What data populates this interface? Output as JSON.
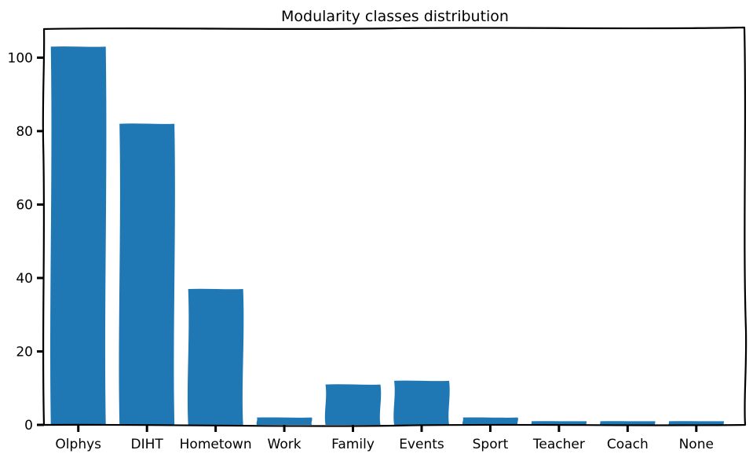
{
  "chart_data": {
    "type": "bar",
    "title": "Modularity classes distribution",
    "xlabel": "",
    "ylabel": "",
    "categories": [
      "Olphys",
      "DIHT",
      "Hometown",
      "Work",
      "Family",
      "Events",
      "Sport",
      "Teacher",
      "Coach",
      "None"
    ],
    "values": [
      103,
      82,
      37,
      2,
      11,
      12,
      2,
      1,
      1,
      1
    ],
    "ylim": [
      0,
      108
    ],
    "yticks": [
      0,
      20,
      40,
      60,
      80,
      100
    ],
    "grid": false,
    "style": "xkcd",
    "bar_color": "#1f77b4"
  }
}
